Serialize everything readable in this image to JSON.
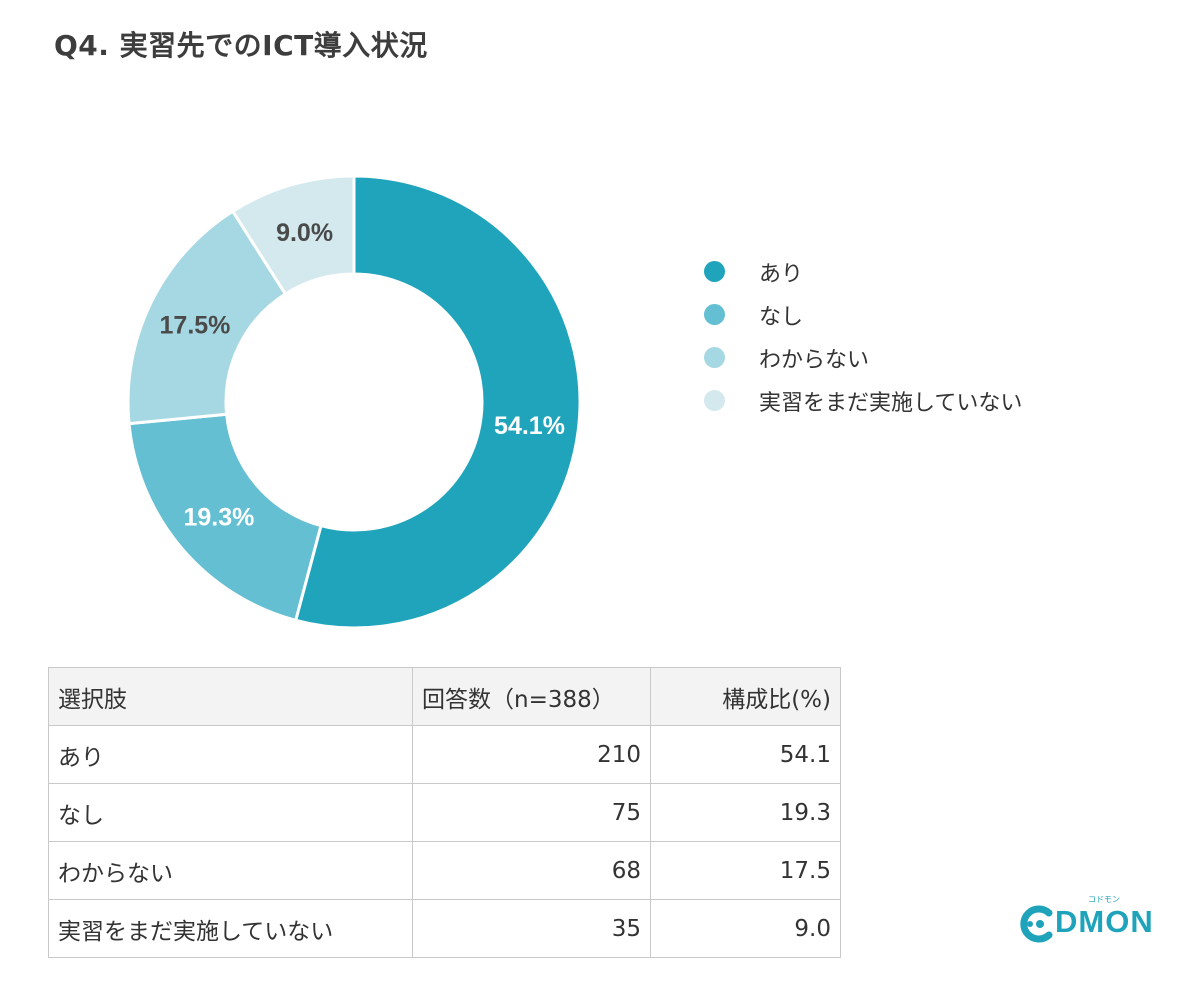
{
  "title": "Q4. 実習先でのICT導入状況",
  "chart_data": {
    "type": "pie",
    "donut": true,
    "categories": [
      "あり",
      "なし",
      "わからない",
      "実習をまだ実施していない"
    ],
    "values": [
      54.1,
      19.3,
      17.5,
      9.0
    ],
    "value_labels": [
      "54.1%",
      "19.3%",
      "17.5%",
      "9.0%"
    ],
    "colors": [
      "#1fa4bb",
      "#63bfd1",
      "#a6d8e3",
      "#d3e9ed"
    ],
    "label_colors": [
      "#ffffff",
      "#ffffff",
      "#4a4a4a",
      "#4a4a4a"
    ],
    "legend_position": "right"
  },
  "legend": {
    "items": [
      "あり",
      "なし",
      "わからない",
      "実習をまだ実施していない"
    ]
  },
  "table": {
    "headers": [
      "選択肢",
      "回答数（n=388）",
      "構成比(%)"
    ],
    "rows": [
      [
        "あり",
        "210",
        "54.1"
      ],
      [
        "なし",
        "75",
        "19.3"
      ],
      [
        "わからない",
        "68",
        "17.5"
      ],
      [
        "実習をまだ実施していない",
        "35",
        "9.0"
      ]
    ]
  },
  "logo": {
    "text": "DMON",
    "tagline": "コドモン"
  }
}
